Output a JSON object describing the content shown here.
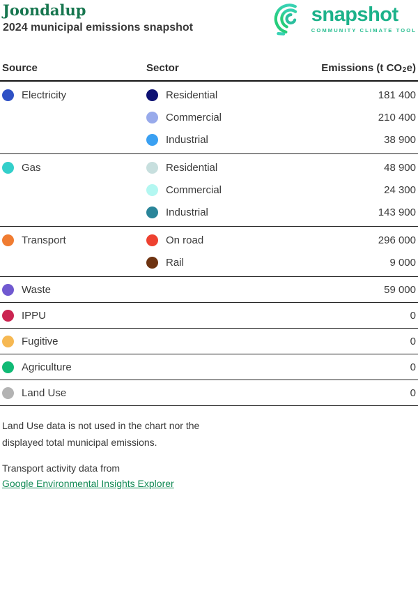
{
  "header": {
    "title": "Joondalup",
    "subtitle": "2024 municipal emissions snapshot"
  },
  "logo": {
    "name": "snapshot",
    "tagline": "COMMUNITY CLIMATE TOOL",
    "brand_color": "#1cb28a",
    "brand_light_color": "#27bd90",
    "icon_teal": "#38d2b4",
    "icon_green": "#27cd7c",
    "icon_name": "snapshot-spiral-icon"
  },
  "table": {
    "columns": {
      "source": "Source",
      "sector": "Sector",
      "emissions": {
        "prefix": "Emissions (t CO",
        "sub": "2",
        "suffix": "e)"
      }
    },
    "sections": [
      {
        "source": "Electricity",
        "color": "#2f51c5",
        "rows": [
          {
            "sector": "Residential",
            "color": "#0d1173",
            "value": "181 400"
          },
          {
            "sector": "Commercial",
            "color": "#98aaeb",
            "value": "210 400"
          },
          {
            "sector": "Industrial",
            "color": "#3aa0f2",
            "value": "38 900"
          }
        ]
      },
      {
        "source": "Gas",
        "color": "#33cfca",
        "rows": [
          {
            "sector": "Residential",
            "color": "#c7dfde",
            "value": "48 900"
          },
          {
            "sector": "Commercial",
            "color": "#b3f7f1",
            "value": "24 300"
          },
          {
            "sector": "Industrial",
            "color": "#2a8599",
            "value": "143 900"
          }
        ]
      },
      {
        "source": "Transport",
        "color": "#f07c31",
        "rows": [
          {
            "sector": "On road",
            "color": "#ee4130",
            "value": "296 000"
          },
          {
            "sector": "Rail",
            "color": "#6e3311",
            "value": "9 000"
          }
        ]
      },
      {
        "source": "Waste",
        "color": "#7059d0",
        "rows": [
          {
            "sector": "",
            "color": null,
            "value": "59 000"
          }
        ]
      },
      {
        "source": "IPPU",
        "color": "#cb2451",
        "rows": [
          {
            "sector": "",
            "color": null,
            "value": "0"
          }
        ]
      },
      {
        "source": "Fugitive",
        "color": "#f6b852",
        "rows": [
          {
            "sector": "",
            "color": null,
            "value": "0"
          }
        ]
      },
      {
        "source": "Agriculture",
        "color": "#10ba75",
        "rows": [
          {
            "sector": "",
            "color": null,
            "value": "0"
          }
        ]
      },
      {
        "source": "Land Use",
        "color": "#b3b3b3",
        "rows": [
          {
            "sector": "",
            "color": null,
            "value": "0"
          }
        ]
      }
    ]
  },
  "footer": {
    "note": "Land Use data is not used in the chart nor the displayed total municipal emissions.",
    "credit": "Transport activity data from",
    "link_label": "Google Environmental Insights Explorer",
    "link_color": "#128a55",
    "title_color": "#17764f"
  }
}
